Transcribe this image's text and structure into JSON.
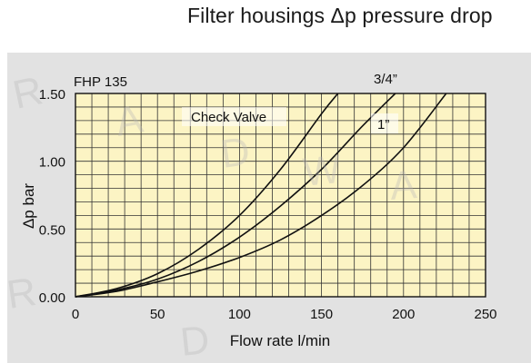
{
  "page": {
    "title": "Filter housings Δp pressure drop",
    "watermark": [
      "R",
      "A",
      "D",
      "W",
      "A",
      "R",
      "D"
    ]
  },
  "chart_data": {
    "type": "line",
    "title": "Filter housings Δp pressure drop",
    "xlabel": "Flow rate l/min",
    "ylabel": "Δp bar",
    "xlim": [
      0,
      250
    ],
    "ylim": [
      0,
      1.5
    ],
    "x_ticks": [
      0,
      50,
      100,
      150,
      200,
      250
    ],
    "y_ticks": [
      0.0,
      0.5,
      1.0,
      1.5
    ],
    "x_tick_labels": [
      "0",
      "50",
      "100",
      "150",
      "200",
      "250"
    ],
    "y_tick_labels": [
      "0.00",
      "0.50",
      "1.00",
      "1.50"
    ],
    "grid": true,
    "grid_step_x": 10,
    "grid_step_y": 0.1,
    "background_color": "#fcf4c4",
    "grid_color": "#333333",
    "line_color": "#111111",
    "annotations": {
      "model": "FHP 135",
      "check_valve": "Check Valve",
      "size_3_4": "3/4”",
      "size_1": "1”"
    },
    "series": [
      {
        "x": [
          0,
          25,
          50,
          75,
          100,
          125,
          150,
          160
        ],
        "y": [
          0,
          0.06,
          0.17,
          0.35,
          0.6,
          0.94,
          1.35,
          1.5
        ]
      },
      {
        "x": [
          0,
          25,
          50,
          75,
          100,
          125,
          150,
          175,
          195
        ],
        "y": [
          0,
          0.05,
          0.13,
          0.26,
          0.44,
          0.67,
          0.94,
          1.26,
          1.5
        ]
      },
      {
        "x": [
          0,
          25,
          50,
          75,
          100,
          125,
          150,
          175,
          200,
          226
        ],
        "y": [
          0,
          0.04,
          0.11,
          0.19,
          0.29,
          0.42,
          0.6,
          0.82,
          1.1,
          1.5
        ]
      }
    ]
  }
}
